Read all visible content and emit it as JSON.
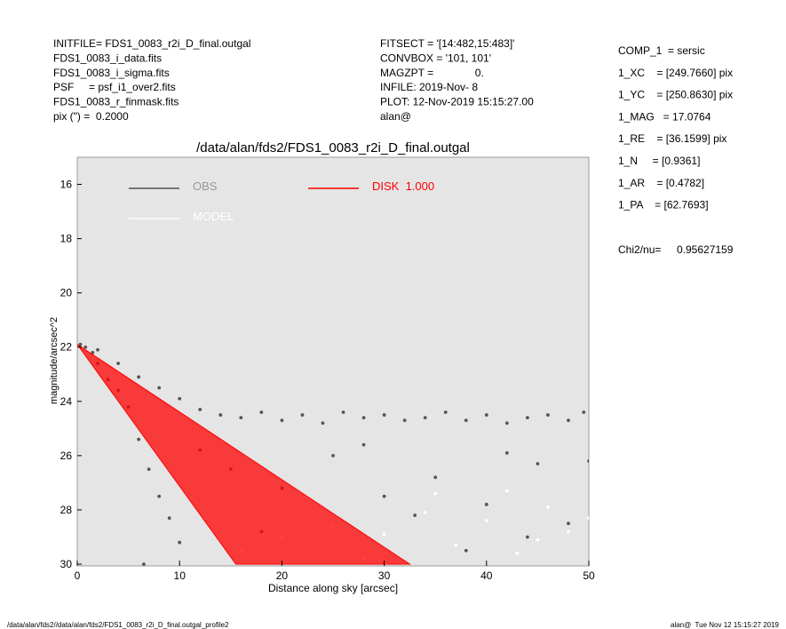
{
  "header": {
    "left": [
      "INITFILE= FDS1_0083_r2i_D_final.outgal",
      "FDS1_0083_i_data.fits",
      "FDS1_0083_i_sigma.fits",
      "PSF     = psf_i1_over2.fits",
      "FDS1_0083_r_finmask.fits",
      "pix (\") =  0.2000"
    ],
    "middle": [
      "FITSECT = '[14:482,15:483]'",
      "CONVBOX = '101, 101'",
      "MAGZPT =              0.",
      "INFILE: 2019-Nov- 8",
      "PLOT: 12-Nov-2019 15:15:27.00",
      "alan@"
    ],
    "right": [
      "COMP_1  = sersic",
      "1_XC    = [249.7660] pix",
      "1_YC    = [250.8630] pix",
      "1_MAG   = 17.0764",
      "1_RE    = [36.1599] pix",
      "1_N     = [0.9361]",
      "1_AR    = [0.4782]",
      "1_PA    = [62.7693]"
    ],
    "chi_label": "Chi2/nu=",
    "chi_value": "0.95627159"
  },
  "footer": {
    "left": "/data/alan/fds2//data/alan/fds2/FDS1_0083_r2i_D_final.outgal_profile2",
    "right": "alan@  Tue Nov 12 15:15:27 2019"
  },
  "chart_data": {
    "type": "scatter",
    "title": "/data/alan/fds2/FDS1_0083_r2i_D_final.outgal",
    "x_label": "Distance along sky [arcsec]",
    "y_label": "magnitude/arcsec^2",
    "xlim": [
      0,
      50
    ],
    "ylim": [
      30,
      15
    ],
    "xticks": [
      0,
      10,
      20,
      30,
      40,
      50
    ],
    "yticks": [
      16,
      18,
      20,
      22,
      24,
      26,
      28,
      30
    ],
    "background": "#e5e5e5",
    "series": [
      {
        "name": "OBS",
        "color": "#555555",
        "mode": "points",
        "x": [
          12,
          14,
          16,
          18,
          20,
          22,
          24,
          26,
          28,
          30,
          32,
          34,
          36,
          38,
          40,
          42,
          44,
          46,
          48,
          49.5,
          0.3,
          0.8,
          1.5,
          2,
          3,
          4,
          5,
          6,
          7,
          8,
          9,
          10,
          6.5,
          2,
          4,
          6,
          8,
          10,
          15,
          20,
          25,
          30,
          35,
          40,
          45,
          48,
          12,
          18,
          38,
          44,
          28,
          33,
          42,
          50
        ],
        "values": [
          24.3,
          24.5,
          24.6,
          24.4,
          24.7,
          24.5,
          24.8,
          24.4,
          24.6,
          24.5,
          24.7,
          24.6,
          24.4,
          24.7,
          24.5,
          24.8,
          24.6,
          24.5,
          24.7,
          24.4,
          21.9,
          22,
          22.2,
          22.6,
          23.2,
          23.6,
          24.2,
          25.4,
          26.5,
          27.5,
          28.3,
          29.2,
          30,
          22.1,
          22.6,
          23.1,
          23.5,
          23.9,
          26.5,
          27.2,
          26,
          27.5,
          26.8,
          27.8,
          26.3,
          28.5,
          25.8,
          28.8,
          29.5,
          29,
          25.6,
          28.2,
          25.9,
          26.2
        ]
      },
      {
        "name": "DISK  1.000",
        "color": "#ff0000",
        "mode": "area",
        "x": [
          0,
          15.5,
          32.5
        ],
        "values": [
          21.9,
          30,
          30
        ]
      },
      {
        "name": "MODEL",
        "color": "#ffffff",
        "mode": "points",
        "x": [
          16,
          20,
          25,
          30,
          34,
          37,
          40,
          43,
          46,
          48,
          50,
          35,
          45,
          28,
          42
        ],
        "values": [
          29.5,
          29,
          28.6,
          28.9,
          28.1,
          29.3,
          28.4,
          29.6,
          27.9,
          28.8,
          28.3,
          27.4,
          29.1,
          29.8,
          27.3
        ]
      }
    ]
  }
}
